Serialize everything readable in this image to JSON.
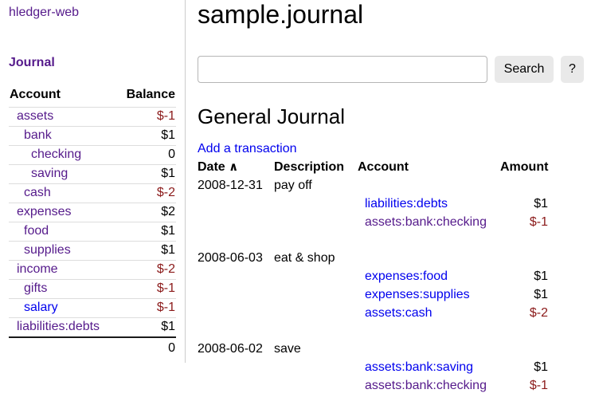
{
  "colors": {
    "link": "#0000ee",
    "link_visited": "#551a8b",
    "negative": "#8b1a1a",
    "button_bg": "#e9e9e9",
    "border_light": "#dddddd",
    "divider": "#cccccc",
    "total_border": "#1a1a1a"
  },
  "sidebar": {
    "app_title": "hledger-web",
    "journal_link": "Journal",
    "table": {
      "account_header": "Account",
      "balance_header": "Balance",
      "rows": [
        {
          "account": "assets",
          "depth": 1,
          "balance": "$-1",
          "negative": true,
          "visited": true
        },
        {
          "account": "bank",
          "depth": 2,
          "balance": "$1",
          "negative": false,
          "visited": true
        },
        {
          "account": "checking",
          "depth": 3,
          "balance": "0",
          "negative": false,
          "visited": true
        },
        {
          "account": "saving",
          "depth": 3,
          "balance": "$1",
          "negative": false,
          "visited": true
        },
        {
          "account": "cash",
          "depth": 2,
          "balance": "$-2",
          "negative": true,
          "visited": true
        },
        {
          "account": "expenses",
          "depth": 1,
          "balance": "$2",
          "negative": false,
          "visited": true
        },
        {
          "account": "food",
          "depth": 2,
          "balance": "$1",
          "negative": false,
          "visited": true
        },
        {
          "account": "supplies",
          "depth": 2,
          "balance": "$1",
          "negative": false,
          "visited": true
        },
        {
          "account": "income",
          "depth": 1,
          "balance": "$-2",
          "negative": true,
          "visited": true
        },
        {
          "account": "gifts",
          "depth": 2,
          "balance": "$-1",
          "negative": true,
          "visited": true
        },
        {
          "account": "salary",
          "depth": 2,
          "balance": "$-1",
          "negative": true,
          "visited": false
        },
        {
          "account": "liabilities:debts",
          "depth": 1,
          "balance": "$1",
          "negative": false,
          "visited": true
        }
      ],
      "total": "0"
    }
  },
  "main": {
    "title": "sample.journal",
    "search": {
      "value": "",
      "placeholder": "",
      "button_label": "Search",
      "help_label": "?"
    },
    "register": {
      "heading": "General Journal",
      "add_link": "Add a transaction",
      "columns": {
        "date": "Date",
        "description": "Description",
        "account": "Account",
        "amount": "Amount"
      },
      "sort_asc_icon": "∧",
      "transactions": [
        {
          "date": "2008-12-31",
          "description": "pay off",
          "postings": [
            {
              "account": "liabilities:debts",
              "amount": "$1",
              "negative": false,
              "visited": false
            },
            {
              "account": "assets:bank:checking",
              "amount": "$-1",
              "negative": true,
              "visited": true
            }
          ]
        },
        {
          "date": "2008-06-03",
          "description": "eat & shop",
          "postings": [
            {
              "account": "expenses:food",
              "amount": "$1",
              "negative": false,
              "visited": false
            },
            {
              "account": "expenses:supplies",
              "amount": "$1",
              "negative": false,
              "visited": false
            },
            {
              "account": "assets:cash",
              "amount": "$-2",
              "negative": true,
              "visited": false
            }
          ]
        },
        {
          "date": "2008-06-02",
          "description": "save",
          "postings": [
            {
              "account": "assets:bank:saving",
              "amount": "$1",
              "negative": false,
              "visited": false
            },
            {
              "account": "assets:bank:checking",
              "amount": "$-1",
              "negative": true,
              "visited": true
            }
          ]
        }
      ]
    }
  }
}
